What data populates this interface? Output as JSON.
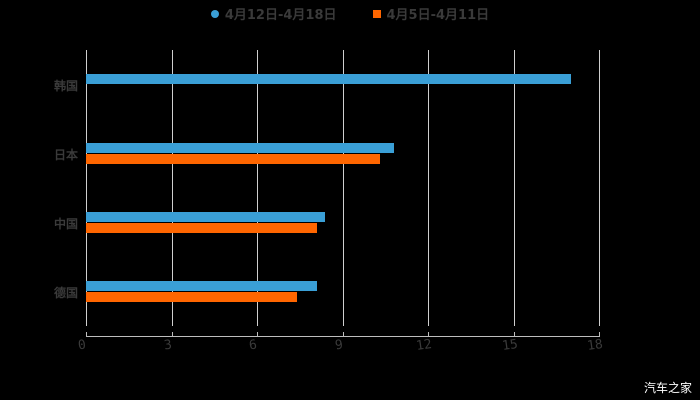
{
  "chart_data": {
    "type": "bar",
    "orientation": "horizontal",
    "title": "",
    "categories": [
      "韩国",
      "日本",
      "中国",
      "德国"
    ],
    "series": [
      {
        "name": "4月12日-4月18日",
        "color": "#3a9fd6",
        "values": [
          17.0,
          10.8,
          8.4,
          8.1
        ]
      },
      {
        "name": "4月5日-4月11日",
        "color": "#ff6600",
        "values": [
          null,
          10.3,
          8.1,
          7.4
        ]
      }
    ],
    "xlabel": "",
    "ylabel": "",
    "xlim": [
      0,
      18
    ],
    "xticks": [
      "0",
      "3",
      "6",
      "9",
      "12",
      "15",
      "18"
    ],
    "grid": true,
    "legend_position": "top"
  },
  "legend": [
    {
      "label": "4月12日-4月18日",
      "color": "#3a9fd6"
    },
    {
      "label": "4月5日-4月11日",
      "color": "#ff6600"
    }
  ],
  "watermark": "汽车之家"
}
